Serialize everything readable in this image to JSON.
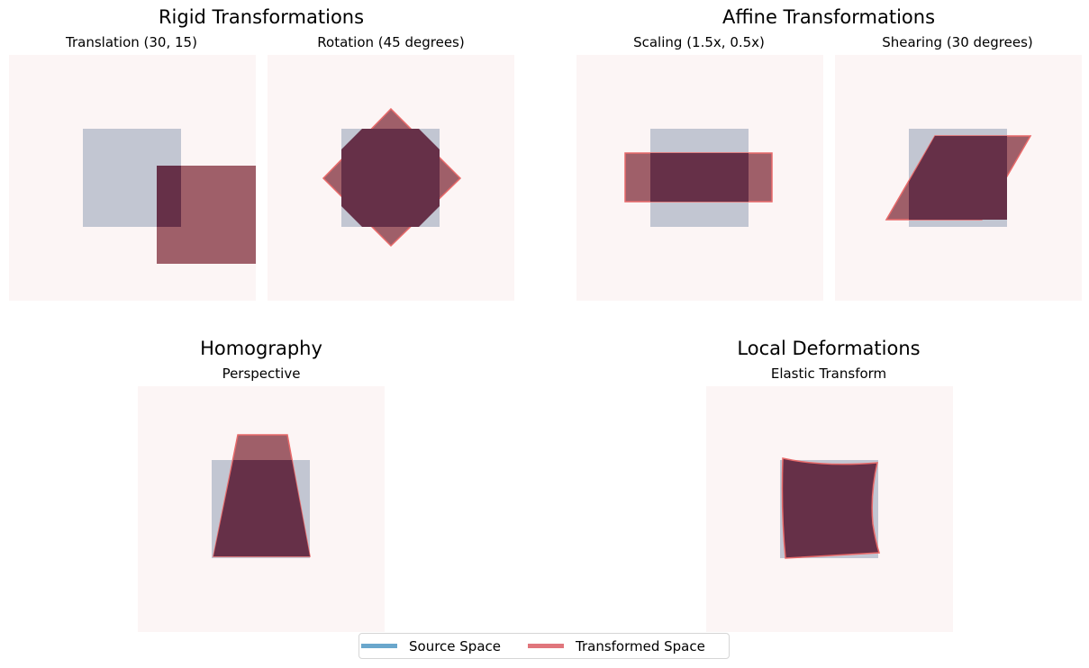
{
  "groups": [
    {
      "title": "Rigid Transformations"
    },
    {
      "title": "Affine Transformations"
    },
    {
      "title": "Homography"
    },
    {
      "title": "Local Deformations"
    }
  ],
  "panels": [
    {
      "title": "Translation (30, 15)",
      "transform": "translation",
      "tx": 30,
      "ty": 15
    },
    {
      "title": "Rotation (45 degrees)",
      "transform": "rotation",
      "angle": 45
    },
    {
      "title": "Scaling (1.5x, 0.5x)",
      "transform": "scaling",
      "sx": 1.5,
      "sy": 0.5
    },
    {
      "title": "Shearing (30 degrees)",
      "transform": "shearing",
      "angle": 30
    },
    {
      "title": "Perspective",
      "transform": "perspective"
    },
    {
      "title": "Elastic Transform",
      "transform": "elastic"
    }
  ],
  "legend": {
    "items": [
      {
        "label": "Source Space",
        "color": "#6aa7cc"
      },
      {
        "label": "Transformed Space",
        "color": "#e0767c"
      }
    ]
  },
  "colors": {
    "panel_background": "#fcf5f5",
    "source_fill": "#c2c6d2",
    "transformed_fill": "#9f5f69",
    "overlap_fill": "#663048",
    "transformed_edge": "#e86a6a"
  }
}
